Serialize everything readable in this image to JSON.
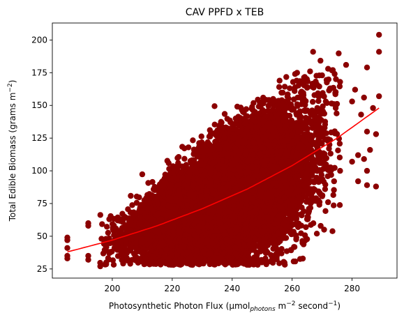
{
  "chart_data": {
    "type": "scatter",
    "title": "CAV PPFD x TEB",
    "xlabel": {
      "prefix": "Photosynthetic Photon Flux (μmol",
      "sub": "photons",
      "mid": " m",
      "sup1": "−2",
      "after": " second",
      "sup2": "−1",
      "suffix": ")"
    },
    "ylabel": {
      "prefix": "Total Edible Biomass (grams m",
      "sup": "−2",
      "suffix": ")"
    },
    "xlim": [
      180,
      295
    ],
    "ylim": [
      18,
      213
    ],
    "xticks": [
      200,
      220,
      240,
      260,
      280
    ],
    "yticks": [
      25,
      50,
      75,
      100,
      125,
      150,
      175,
      200
    ],
    "x_range": [
      185,
      289
    ],
    "point_color": "#8b0000",
    "fit_color": "#ff0000",
    "point_count": 16000,
    "fit_curve": {
      "x": [
        185,
        200,
        215,
        230,
        245,
        260,
        275,
        289
      ],
      "y": [
        38,
        47,
        58,
        71,
        86,
        104,
        125,
        148
      ]
    },
    "outliers": [
      {
        "x": 289,
        "y": 204
      },
      {
        "x": 289,
        "y": 191
      },
      {
        "x": 267,
        "y": 191
      },
      {
        "x": 278,
        "y": 181
      },
      {
        "x": 285,
        "y": 179
      },
      {
        "x": 272,
        "y": 178
      },
      {
        "x": 266,
        "y": 176
      },
      {
        "x": 270,
        "y": 173
      },
      {
        "x": 261,
        "y": 174
      },
      {
        "x": 276,
        "y": 168
      },
      {
        "x": 273,
        "y": 163
      },
      {
        "x": 281,
        "y": 162
      },
      {
        "x": 289,
        "y": 157
      },
      {
        "x": 284,
        "y": 156
      },
      {
        "x": 280,
        "y": 153
      },
      {
        "x": 287,
        "y": 148
      },
      {
        "x": 283,
        "y": 143
      },
      {
        "x": 285,
        "y": 130
      },
      {
        "x": 288,
        "y": 128
      },
      {
        "x": 286,
        "y": 116
      },
      {
        "x": 282,
        "y": 112
      },
      {
        "x": 284,
        "y": 109
      },
      {
        "x": 280,
        "y": 107
      },
      {
        "x": 285,
        "y": 100
      },
      {
        "x": 282,
        "y": 92
      },
      {
        "x": 285,
        "y": 89
      },
      {
        "x": 288,
        "y": 88
      },
      {
        "x": 276,
        "y": 100
      },
      {
        "x": 274,
        "y": 92
      },
      {
        "x": 271,
        "y": 86
      },
      {
        "x": 268,
        "y": 79
      },
      {
        "x": 272,
        "y": 76
      },
      {
        "x": 265,
        "y": 63
      },
      {
        "x": 262,
        "y": 57
      },
      {
        "x": 185,
        "y": 33
      },
      {
        "x": 185,
        "y": 35
      },
      {
        "x": 185,
        "y": 41
      },
      {
        "x": 185,
        "y": 47
      },
      {
        "x": 185,
        "y": 49
      },
      {
        "x": 192,
        "y": 60
      },
      {
        "x": 192,
        "y": 58
      },
      {
        "x": 192,
        "y": 32
      },
      {
        "x": 192,
        "y": 35
      },
      {
        "x": 196,
        "y": 27
      },
      {
        "x": 198,
        "y": 30
      },
      {
        "x": 206,
        "y": 29
      },
      {
        "x": 211,
        "y": 29
      },
      {
        "x": 222,
        "y": 31
      },
      {
        "x": 199,
        "y": 63
      },
      {
        "x": 199,
        "y": 37
      }
    ],
    "grid": false,
    "legend": "none"
  }
}
